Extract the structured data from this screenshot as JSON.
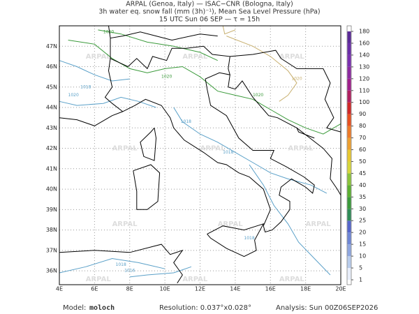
{
  "header": {
    "lines": [
      "ARPAL (Genoa, Italy)  —  ISAC−CNR (Bologna, Italy)",
      "3h water eq. snow fall (mm (3h)⁻¹), Mean Sea Level Pressure (hPa)",
      "15 UTC Sun 06 SEP  —  τ = 15h"
    ]
  },
  "map": {
    "lon_range": [
      4,
      20
    ],
    "lat_range": [
      35.32,
      48
    ],
    "lon_ticks": [
      {
        "value": 4,
        "label": "4E"
      },
      {
        "value": 6,
        "label": "6E"
      },
      {
        "value": 8,
        "label": "8E"
      },
      {
        "value": 10,
        "label": "10E"
      },
      {
        "value": 12,
        "label": "12E"
      },
      {
        "value": 14,
        "label": "14E"
      },
      {
        "value": 16,
        "label": "16E"
      },
      {
        "value": 18,
        "label": "18E"
      },
      {
        "value": 20,
        "label": "20E"
      }
    ],
    "lat_ticks": [
      {
        "value": 36,
        "label": "36N"
      },
      {
        "value": 37,
        "label": "37N"
      },
      {
        "value": 38,
        "label": "38N"
      },
      {
        "value": 39,
        "label": "39N"
      },
      {
        "value": 40,
        "label": "40N"
      },
      {
        "value": 41,
        "label": "41N"
      },
      {
        "value": 42,
        "label": "42N"
      },
      {
        "value": 43,
        "label": "43N"
      },
      {
        "value": 44,
        "label": "44N"
      },
      {
        "value": 45,
        "label": "45N"
      },
      {
        "value": 46,
        "label": "46N"
      },
      {
        "value": 47,
        "label": "47N"
      }
    ],
    "watermark": "ARPAL",
    "isobar_labels": [
      "1020",
      "1018",
      "1016"
    ]
  },
  "colorbar": {
    "levels": [
      1,
      5,
      10,
      15,
      20,
      25,
      30,
      35,
      40,
      45,
      50,
      60,
      70,
      80,
      90,
      100,
      110,
      120,
      130,
      140,
      160,
      180
    ],
    "colors": [
      "#e8eefa",
      "#b8ccec",
      "#8ea6e0",
      "#6e86d6",
      "#5566cc",
      "#2e8b57",
      "#3a9a3a",
      "#5cb030",
      "#8cc43a",
      "#d6d63a",
      "#e8c830",
      "#eea030",
      "#ee7a28",
      "#e85020",
      "#d02828",
      "#b02060",
      "#a0208c",
      "#8c2aa0",
      "#7a30b0",
      "#6a2ea8",
      "#5a2a98"
    ]
  },
  "footer": {
    "model_label": "Model:",
    "model": "moloch",
    "resolution": "Resolution: 0.037°x0.028°",
    "analysis": "Analysis: Sun 00Z06SEP2026"
  }
}
